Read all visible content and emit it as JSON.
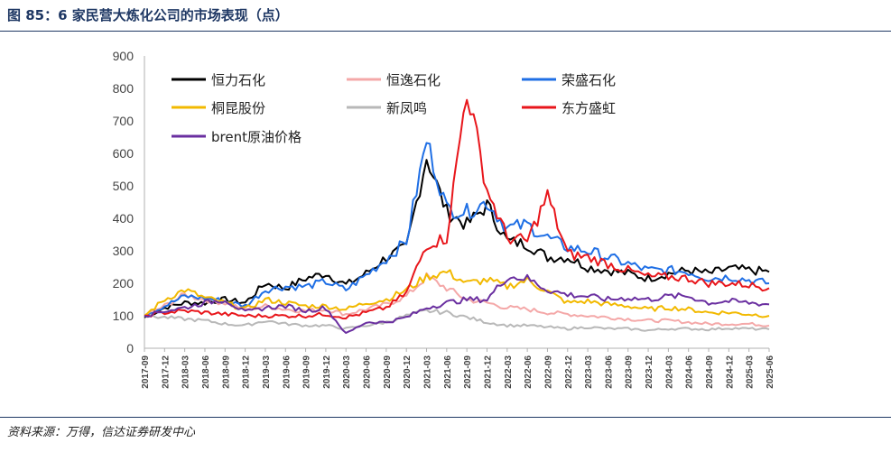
{
  "figure": {
    "title": "图 85：6 家民营大炼化公司的市场表现（点）",
    "source": "资料来源：万得，信达证券研发中心"
  },
  "colors": {
    "heng_li": "#000000",
    "heng_yi": "#f4a8a8",
    "rong_sheng": "#1f6fe5",
    "tong_kun": "#f2b900",
    "xin_feng_ming": "#b8b8b8",
    "dong_fang_sheng_hong": "#e8161b",
    "brent": "#6a2fa0"
  },
  "chart_data": {
    "type": "line",
    "title": "",
    "xlabel": "",
    "ylabel": "",
    "ylim": [
      0,
      900
    ],
    "yticks": [
      "900",
      "800",
      "700",
      "600",
      "500",
      "400",
      "300",
      "200",
      "100",
      "0"
    ],
    "x": [
      "2017-09",
      "2017-12",
      "2018-03",
      "2018-06",
      "2018-09",
      "2018-12",
      "2019-03",
      "2019-06",
      "2019-09",
      "2019-12",
      "2020-03",
      "2020-06",
      "2020-09",
      "2020-12",
      "2021-03",
      "2021-06",
      "2021-09",
      "2021-12",
      "2022-03",
      "2022-06",
      "2022-09",
      "2022-12",
      "2023-03",
      "2023-06",
      "2023-09",
      "2023-12",
      "2024-03",
      "2024-06",
      "2024-09",
      "2024-12",
      "2025-03",
      "2025-06"
    ],
    "grid": false,
    "legend_position": "top",
    "series": [
      {
        "name": "恒力石化",
        "color_key": "heng_li",
        "values": [
          95,
          125,
          140,
          140,
          150,
          140,
          200,
          185,
          215,
          230,
          195,
          230,
          280,
          310,
          590,
          420,
          380,
          440,
          330,
          320,
          280,
          280,
          250,
          240,
          230,
          215,
          230,
          240,
          230,
          245,
          240,
          235
        ]
      },
      {
        "name": "恒逸石化",
        "color_key": "heng_yi",
        "values": [
          100,
          130,
          165,
          150,
          140,
          120,
          130,
          120,
          115,
          120,
          105,
          120,
          135,
          160,
          220,
          185,
          150,
          140,
          125,
          120,
          110,
          105,
          100,
          95,
          90,
          85,
          85,
          80,
          75,
          75,
          75,
          70
        ]
      },
      {
        "name": "荣盛石化",
        "color_key": "rong_sheng",
        "values": [
          100,
          130,
          160,
          155,
          145,
          130,
          180,
          190,
          190,
          205,
          180,
          225,
          275,
          330,
          640,
          430,
          420,
          450,
          370,
          380,
          340,
          310,
          300,
          280,
          260,
          240,
          240,
          235,
          215,
          220,
          210,
          200
        ]
      },
      {
        "name": "桐昆股份",
        "color_key": "tong_kun",
        "values": [
          100,
          150,
          180,
          155,
          140,
          120,
          150,
          140,
          130,
          130,
          120,
          140,
          150,
          180,
          220,
          235,
          200,
          210,
          190,
          210,
          175,
          140,
          145,
          135,
          130,
          120,
          125,
          120,
          110,
          110,
          105,
          100
        ]
      },
      {
        "name": "新凤鸣",
        "color_key": "xin_feng_ming",
        "values": [
          100,
          95,
          90,
          85,
          75,
          70,
          85,
          75,
          70,
          70,
          60,
          70,
          80,
          100,
          115,
          110,
          95,
          80,
          70,
          70,
          65,
          60,
          65,
          60,
          60,
          55,
          60,
          60,
          58,
          62,
          60,
          58
        ]
      },
      {
        "name": "东方盛虹",
        "color_key": "dong_fang_sheng_hong",
        "values": [
          100,
          110,
          115,
          110,
          105,
          100,
          100,
          100,
          100,
          105,
          95,
          110,
          125,
          170,
          320,
          340,
          800,
          490,
          340,
          330,
          470,
          290,
          280,
          260,
          240,
          220,
          220,
          215,
          200,
          200,
          195,
          185
        ]
      },
      {
        "name": "brent原油价格",
        "color_key": "brent",
        "values": [
          100,
          115,
          125,
          140,
          150,
          110,
          125,
          130,
          115,
          125,
          45,
          80,
          80,
          95,
          125,
          140,
          150,
          150,
          220,
          215,
          180,
          165,
          160,
          150,
          155,
          150,
          160,
          160,
          140,
          145,
          140,
          135
        ]
      }
    ]
  }
}
